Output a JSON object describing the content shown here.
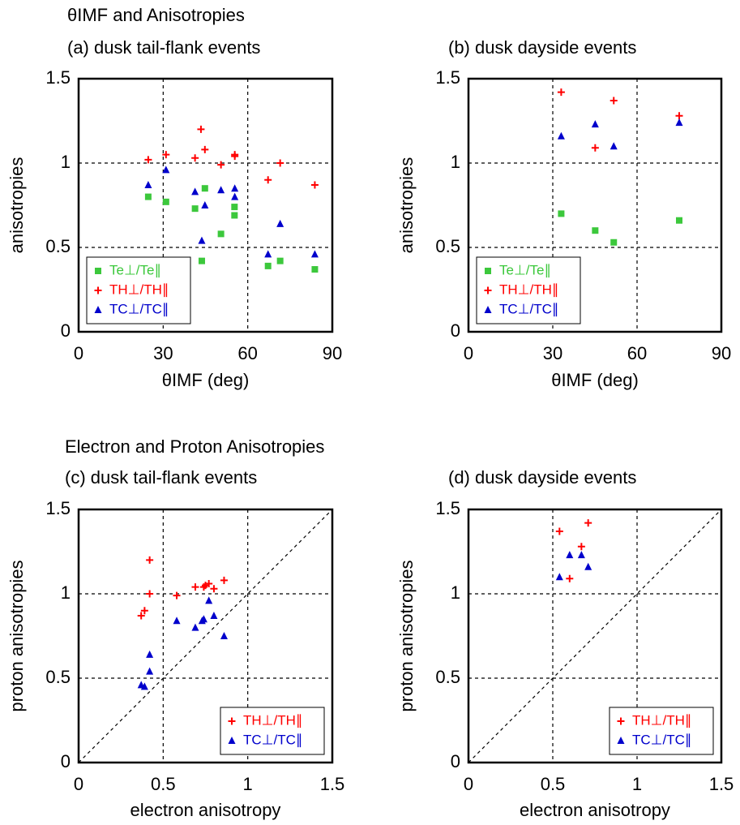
{
  "chart_data": [
    {
      "type": "scatter",
      "section_title": "θIMF and Anisotropies",
      "title": "(a) dusk tail-flank events",
      "xlabel": "θIMF (deg)",
      "ylabel": "anisotropies",
      "xlim": [
        0,
        90
      ],
      "ylim": [
        0,
        1.5
      ],
      "xticks": [
        0,
        30,
        60,
        90
      ],
      "yticks": [
        0,
        0.5,
        1,
        1.5
      ],
      "grid": true,
      "diagonal": false,
      "legend": "lower left",
      "series": [
        {
          "name": "Te⊥/Te∥",
          "color": "#3cc83c",
          "marker": "square",
          "x": [
            24.7,
            31.0,
            41.3,
            44.8,
            43.7,
            50.5,
            55.3,
            55.3,
            67.2,
            71.5,
            83.8
          ],
          "values": [
            0.8,
            0.77,
            0.73,
            0.85,
            0.42,
            0.58,
            0.74,
            0.69,
            0.39,
            0.42,
            0.37
          ]
        },
        {
          "name": "TH⊥/TH∥",
          "color": "#ff0000",
          "marker": "plus",
          "x": [
            24.7,
            31.0,
            41.3,
            43.4,
            44.8,
            50.5,
            55.4,
            55.4,
            67.2,
            71.5,
            83.8
          ],
          "values": [
            1.02,
            1.05,
            1.03,
            1.2,
            1.08,
            0.99,
            1.04,
            1.05,
            0.9,
            1.0,
            0.87
          ]
        },
        {
          "name": "TC⊥/TC∥",
          "color": "#0000cc",
          "marker": "triangle",
          "x": [
            24.7,
            31.0,
            41.3,
            43.7,
            44.8,
            50.5,
            55.4,
            55.4,
            67.2,
            71.5,
            83.8
          ],
          "values": [
            0.87,
            0.96,
            0.83,
            0.54,
            0.75,
            0.84,
            0.85,
            0.8,
            0.46,
            0.64,
            0.46
          ]
        }
      ]
    },
    {
      "type": "scatter",
      "title": "(b) dusk dayside events",
      "xlabel": "θIMF (deg)",
      "ylabel": "anisotropies",
      "xlim": [
        0,
        90
      ],
      "ylim": [
        0,
        1.5
      ],
      "xticks": [
        0,
        30,
        60,
        90
      ],
      "yticks": [
        0,
        0.5,
        1,
        1.5
      ],
      "grid": true,
      "diagonal": false,
      "legend": "lower left",
      "series": [
        {
          "name": "Te⊥/Te∥",
          "color": "#3cc83c",
          "marker": "square",
          "x": [
            33.0,
            45.1,
            51.7,
            75.0
          ],
          "values": [
            0.7,
            0.6,
            0.53,
            0.66
          ]
        },
        {
          "name": "TH⊥/TH∥",
          "color": "#ff0000",
          "marker": "plus",
          "x": [
            33.0,
            45.1,
            51.7,
            75.0
          ],
          "values": [
            1.42,
            1.09,
            1.37,
            1.28
          ]
        },
        {
          "name": "TC⊥/TC∥",
          "color": "#0000cc",
          "marker": "triangle",
          "x": [
            33.0,
            45.1,
            51.7,
            75.0
          ],
          "values": [
            1.16,
            1.23,
            1.1,
            1.24
          ]
        }
      ]
    },
    {
      "type": "scatter",
      "section_title": "Electron and Proton Anisotropies",
      "title": "(c) dusk tail-flank events",
      "xlabel": "electron anisotropy",
      "ylabel": "proton anisotropies",
      "xlim": [
        0,
        1.5
      ],
      "ylim": [
        0,
        1.5
      ],
      "xticks": [
        0,
        0.5,
        1,
        1.5
      ],
      "yticks": [
        0,
        0.5,
        1,
        1.5
      ],
      "grid": true,
      "diagonal": true,
      "legend": "lower right",
      "series": [
        {
          "name": "TH⊥/TH∥",
          "color": "#ff0000",
          "marker": "plus",
          "x": [
            0.37,
            0.39,
            0.42,
            0.42,
            0.58,
            0.69,
            0.74,
            0.75,
            0.77,
            0.8,
            0.86
          ],
          "values": [
            0.87,
            0.9,
            1.0,
            1.2,
            0.99,
            1.04,
            1.04,
            1.05,
            1.06,
            1.03,
            1.08
          ]
        },
        {
          "name": "TC⊥/TC∥",
          "color": "#0000cc",
          "marker": "triangle",
          "x": [
            0.37,
            0.39,
            0.42,
            0.42,
            0.58,
            0.69,
            0.73,
            0.74,
            0.77,
            0.8,
            0.86
          ],
          "values": [
            0.46,
            0.45,
            0.64,
            0.54,
            0.84,
            0.8,
            0.84,
            0.85,
            0.96,
            0.87,
            0.75
          ]
        }
      ]
    },
    {
      "type": "scatter",
      "title": "(d) dusk dayside events",
      "xlabel": "electron anisotropy",
      "ylabel": "proton anisotropies",
      "xlim": [
        0,
        1.5
      ],
      "ylim": [
        0,
        1.5
      ],
      "xticks": [
        0,
        0.5,
        1,
        1.5
      ],
      "yticks": [
        0,
        0.5,
        1,
        1.5
      ],
      "grid": true,
      "diagonal": true,
      "legend": "lower right",
      "series": [
        {
          "name": "TH⊥/TH∥",
          "color": "#ff0000",
          "marker": "plus",
          "x": [
            0.54,
            0.6,
            0.67,
            0.71
          ],
          "values": [
            1.37,
            1.09,
            1.28,
            1.42
          ]
        },
        {
          "name": "TC⊥/TC∥",
          "color": "#0000cc",
          "marker": "triangle",
          "x": [
            0.54,
            0.6,
            0.67,
            0.71
          ],
          "values": [
            1.1,
            1.23,
            1.23,
            1.16
          ]
        }
      ]
    }
  ]
}
